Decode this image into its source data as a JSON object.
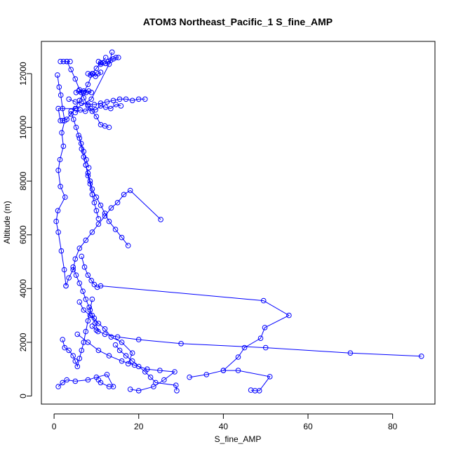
{
  "chart_data": {
    "type": "scatter",
    "title": "ATOM3 Northeast_Pacific_1 S_fine_AMP",
    "xlabel": "S_fine_AMP",
    "ylabel": "Altitude (m)",
    "xlim": [
      -3,
      90
    ],
    "ylim": [
      -300,
      13200
    ],
    "x_ticks": [
      0,
      20,
      40,
      60,
      80
    ],
    "y_ticks": [
      0,
      2000,
      4000,
      6000,
      8000,
      10000,
      12000
    ],
    "grid": false,
    "legend": "none",
    "marker": "open-circle",
    "connected": true,
    "color": "#0000ff",
    "series": [
      {
        "x": [
          0.8,
          1.2,
          1.6,
          2.0,
          2.5,
          1.8,
          2.2,
          1.4,
          1.0,
          1.5,
          2.6,
          0.9,
          0.5,
          1.0,
          1.7,
          2.4,
          2.8
        ],
        "y": [
          11950,
          11500,
          11200,
          10700,
          10250,
          9800,
          9300,
          8800,
          8400,
          7800,
          7400,
          6900,
          6500,
          6100,
          5400,
          4700,
          4100
        ]
      },
      {
        "x": [
          2.8,
          3.5,
          4.5,
          5.0,
          6.0,
          7.5,
          9.0,
          10.5,
          12.0,
          13.5,
          15.0,
          16.5,
          18.0,
          25.2
        ],
        "y": [
          4100,
          4400,
          4700,
          5100,
          5500,
          5800,
          6100,
          6400,
          6700,
          7000,
          7200,
          7500,
          7650,
          6570
        ]
      },
      {
        "x": [
          12.2,
          11.0,
          10.0,
          9.0,
          8.0,
          7.0,
          6.0,
          5.0,
          4.0,
          3.0,
          2.0,
          1.5,
          1.0,
          5.2,
          8.8,
          13.0,
          13.7
        ],
        "y": [
          12600,
          12400,
          12200,
          12000,
          11600,
          11300,
          11000,
          10700,
          10500,
          10300,
          10250,
          10250,
          10700,
          10700,
          11050,
          12350,
          12800
        ]
      },
      {
        "x": [
          6.5,
          7.2,
          8.0,
          8.8,
          9.5,
          10.2,
          11.0,
          49.5,
          55.5,
          49.8,
          48.8,
          45.0,
          43.5,
          40.0,
          36.0,
          32.0
        ],
        "y": [
          5200,
          4800,
          4500,
          4300,
          4150,
          4050,
          4100,
          3550,
          3000,
          2550,
          2150,
          1800,
          1450,
          950,
          800,
          700
        ]
      },
      {
        "x": [
          9.0,
          10.0,
          12.0,
          15.0,
          20.0,
          30.0,
          50.0,
          70.0,
          86.8
        ],
        "y": [
          2600,
          2450,
          2300,
          2200,
          2100,
          1950,
          1800,
          1600,
          1480
        ]
      },
      {
        "x": [
          5.5,
          8.0,
          10.5,
          13.0,
          16.0,
          19.0,
          22.0,
          25.0,
          28.5,
          26.0,
          23.5,
          20.0,
          18.0
        ],
        "y": [
          2300,
          2000,
          1700,
          1500,
          1300,
          1150,
          1000,
          950,
          900,
          600,
          350,
          200,
          250
        ]
      },
      {
        "x": [
          40.0,
          43.5,
          51.0,
          48.5,
          47.5,
          46.5
        ],
        "y": [
          950,
          950,
          720,
          200,
          200,
          220
        ]
      },
      {
        "x": [
          1.0,
          2.0,
          3.0,
          5.0,
          8.0,
          10.0,
          12.5,
          14.0,
          13.0,
          11.0,
          10.5
        ],
        "y": [
          350,
          500,
          600,
          550,
          600,
          700,
          800,
          350,
          350,
          500,
          600
        ]
      },
      {
        "x": [
          6.0,
          7.0,
          8.5,
          9.5,
          10.5,
          12.0,
          13.5,
          16.0,
          18.5,
          17.5
        ],
        "y": [
          3500,
          3200,
          3000,
          2900,
          2700,
          2500,
          2200,
          2000,
          1600,
          1200
        ]
      },
      {
        "x": [
          6.0,
          6.5,
          7.0,
          7.5,
          8.0,
          8.5,
          9.0,
          9.5,
          10.0,
          10.5
        ],
        "y": [
          9600,
          9200,
          8900,
          8600,
          8200,
          7900,
          7500,
          7200,
          6900,
          6600
        ]
      },
      {
        "x": [
          4.0,
          4.6,
          5.2,
          5.8,
          6.4,
          7.0,
          7.6,
          8.2
        ],
        "y": [
          10600,
          10300,
          10000,
          9700,
          9400,
          9100,
          8800,
          8500
        ]
      },
      {
        "x": [
          4.5,
          5.2,
          6.0,
          6.8,
          7.5,
          8.3,
          9.0,
          9.7,
          10.4
        ],
        "y": [
          4800,
          4500,
          4200,
          3900,
          3600,
          3300,
          3000,
          2700,
          2400
        ]
      },
      {
        "x": [
          14.5,
          15.5,
          17.0,
          18.5,
          20.0,
          21.5,
          22.8,
          24.0,
          28.8,
          29.0
        ],
        "y": [
          1900,
          1700,
          1500,
          1300,
          1100,
          900,
          700,
          500,
          400,
          200
        ]
      },
      {
        "x": [
          2.0,
          2.5,
          3.5,
          4.5,
          5.0,
          5.5,
          6.0,
          6.5,
          7.0,
          7.5,
          8.0,
          8.5,
          9.0
        ],
        "y": [
          2100,
          1800,
          1700,
          1500,
          1300,
          1100,
          1400,
          1700,
          2000,
          2400,
          2800,
          3200,
          3600
        ]
      },
      {
        "x": [
          3.0,
          4.0,
          5.0,
          6.0,
          7.0,
          8.0,
          9.0,
          10.0,
          11.0,
          12.0,
          13.0
        ],
        "y": [
          12450,
          12150,
          11800,
          11400,
          11100,
          10800,
          10600,
          10400,
          10100,
          10050,
          10000
        ]
      },
      {
        "x": [
          3.5,
          5.0,
          6.5,
          8.0,
          9.5,
          11.0,
          12.5,
          14.0,
          15.5,
          17.0,
          18.5,
          20.0,
          21.5
        ],
        "y": [
          11050,
          10950,
          10900,
          10850,
          10850,
          10900,
          10950,
          11000,
          11050,
          11050,
          11000,
          11050,
          11050
        ]
      },
      {
        "x": [
          5.0,
          6.2,
          7.4,
          8.6,
          9.8,
          11.0,
          12.2,
          13.4,
          14.6,
          15.8
        ],
        "y": [
          10550,
          10650,
          10600,
          10700,
          10650,
          10800,
          10750,
          10700,
          10850,
          10800
        ]
      },
      {
        "x": [
          8.0,
          8.6,
          9.2,
          9.8,
          10.4,
          11.0
        ],
        "y": [
          12000,
          11950,
          12000,
          11900,
          12000,
          12050
        ]
      },
      {
        "x": [
          10.5,
          11.0,
          11.6,
          12.2,
          12.8,
          13.4,
          14.0,
          14.6,
          15.2
        ],
        "y": [
          12450,
          12350,
          12400,
          12380,
          12450,
          12500,
          12550,
          12600,
          12600
        ]
      },
      {
        "x": [
          5.2,
          5.8,
          6.4,
          7.0,
          7.6,
          8.2,
          8.8
        ],
        "y": [
          11300,
          11350,
          11300,
          11350,
          11300,
          11350,
          11300
        ]
      },
      {
        "x": [
          1.5,
          2.2,
          3.0,
          3.8
        ],
        "y": [
          12450,
          12450,
          12450,
          12450
        ]
      },
      {
        "x": [
          7.5,
          8.0,
          8.5,
          9.0,
          10.0,
          11.0,
          12.0,
          13.0,
          14.5,
          16.0,
          17.5
        ],
        "y": [
          8600,
          8300,
          8000,
          7700,
          7400,
          7100,
          6800,
          6500,
          6200,
          5900,
          5600
        ]
      }
    ]
  }
}
